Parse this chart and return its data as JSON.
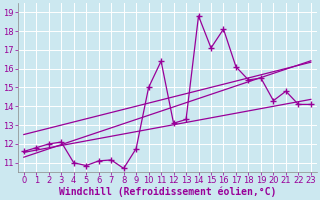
{
  "xlabel": "Windchill (Refroidissement éolien,°C)",
  "x_values": [
    0,
    1,
    2,
    3,
    4,
    5,
    6,
    7,
    8,
    9,
    10,
    11,
    12,
    13,
    14,
    15,
    16,
    17,
    18,
    19,
    20,
    21,
    22,
    23
  ],
  "y_main": [
    11.6,
    11.8,
    12.0,
    12.1,
    11.0,
    10.85,
    11.1,
    11.15,
    10.7,
    11.75,
    15.0,
    16.4,
    13.1,
    13.3,
    18.8,
    17.1,
    18.1,
    16.1,
    15.4,
    15.5,
    14.3,
    14.8,
    14.1,
    14.1
  ],
  "line_color": "#990099",
  "bg_color": "#cce8f0",
  "grid_color": "#ffffff",
  "ylim": [
    10.5,
    19.5
  ],
  "xlim": [
    -0.5,
    23.5
  ],
  "yticks": [
    11,
    12,
    13,
    14,
    15,
    16,
    17,
    18,
    19
  ],
  "xticks": [
    0,
    1,
    2,
    3,
    4,
    5,
    6,
    7,
    8,
    9,
    10,
    11,
    12,
    13,
    14,
    15,
    16,
    17,
    18,
    19,
    20,
    21,
    22,
    23
  ],
  "tick_fontsize": 6,
  "label_fontsize": 7,
  "reg_offsets": [
    -1.0,
    0.0,
    0.5
  ]
}
